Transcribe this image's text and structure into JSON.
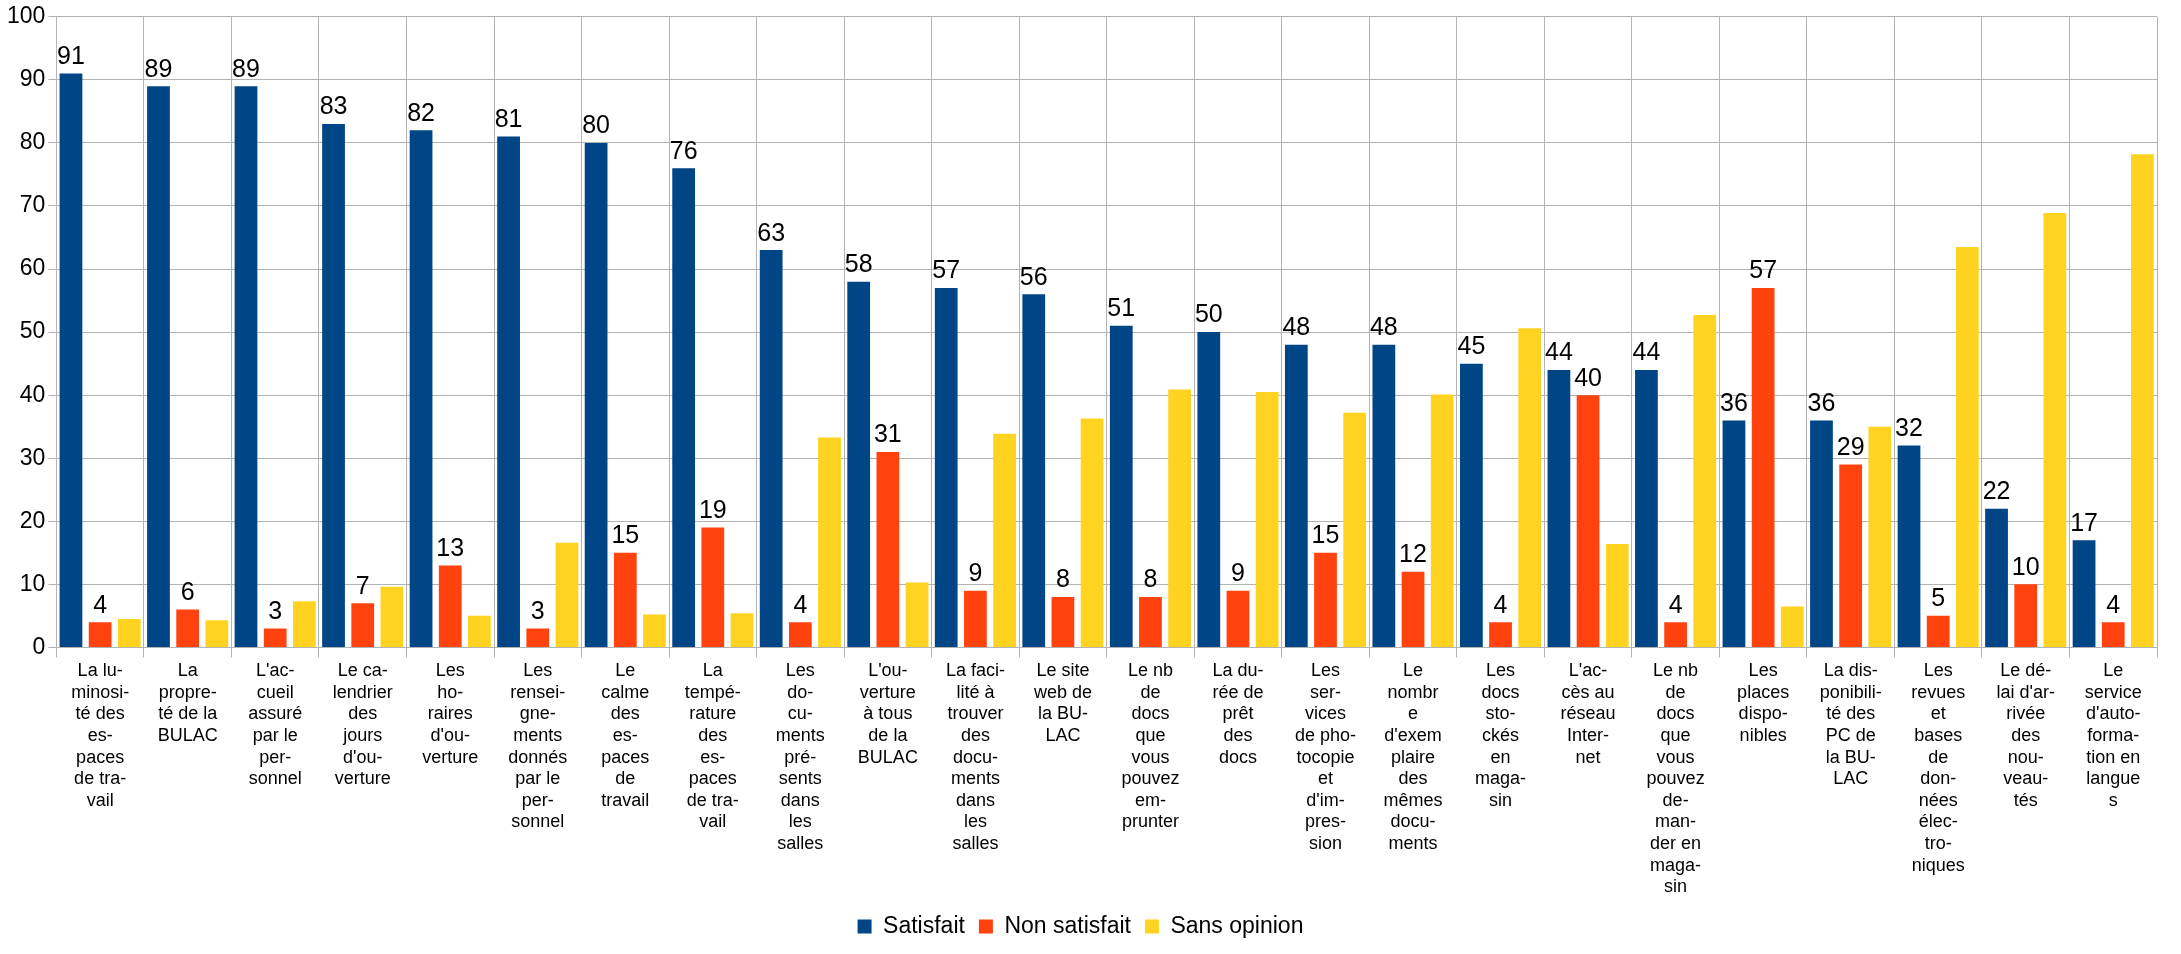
{
  "chart_data": {
    "type": "bar",
    "categories": [
      "La lu-\nminosi-\nté des\nes-\npaces\nde tra-\nvail",
      "La\npropre-\nté de la\nBULAC",
      "L'ac-\ncueil\nassuré\npar le\nper-\nsonnel",
      "Le ca-\nlendrier\ndes\njours\nd'ou-\nverture",
      "Les\nho-\nraires\nd'ou-\nverture",
      "Les\nrensei-\ngne-\nments\ndonnés\npar le\nper-\nsonnel",
      "Le\ncalme\ndes\nes-\npaces\nde\ntravail",
      "La\ntempé-\nrature\ndes\nes-\npaces\nde tra-\nvail",
      "Les\ndo-\ncu-\nments\npré-\nsents\ndans\nles\nsalles",
      "L'ou-\nverture\nà tous\nde la\nBULAC",
      "La faci-\nlité à\ntrouver\ndes\ndocu-\nments\ndans\nles\nsalles",
      "Le site\nweb de\nla BU-\nLAC",
      "Le nb\nde\ndocs\nque\nvous\npouvez\nem-\nprunter",
      "La du-\nrée de\nprêt\ndes\ndocs",
      "Les\nser-\nvices\nde pho-\ntocopie\net\nd'im-\npres-\nsion",
      "Le\nnombr\ne\nd'exem\nplaire\ndes\nmêmes\ndocu-\nments",
      "Les\ndocs\nsto-\nckés\nen\nmaga-\nsin",
      "L'ac-\ncès au\nréseau\nInter-\nnet",
      "Le nb\nde\ndocs\nque\nvous\npouvez\nde-\nman-\nder en\nmaga-\nsin",
      "Les\nplaces\ndispo-\nnibles",
      "La dis-\nponibili-\nté des\nPC de\nla BU-\nLAC",
      "Les\nrevues\net\nbases\nde\ndon-\nnées\nélec-\ntro-\nniques",
      "Le dé-\nlai d'ar-\nrivée\ndes\nnou-\nveau-\ntés",
      "Le\nservice\nd'auto-\nforma-\ntion en\nlangue\ns"
    ],
    "series": [
      {
        "name": "Satisfait",
        "color": "#004586",
        "values": [
          91,
          89,
          89,
          83,
          82,
          81,
          80,
          76,
          63,
          58,
          57,
          56,
          51,
          50,
          48,
          48,
          45,
          44,
          44,
          36,
          36,
          32,
          22,
          17
        ],
        "value_labels": [
          "91",
          "89",
          "89",
          "83",
          "82",
          "81",
          "80",
          "76",
          "63",
          "58",
          "57",
          "56",
          "51",
          "50",
          "48",
          "48",
          "45",
          "44",
          "44",
          "36",
          "36",
          "32",
          "22",
          "17"
        ]
      },
      {
        "name": "Non satisfait",
        "color": "#ff420e",
        "values": [
          4,
          6,
          3,
          7,
          13,
          3,
          15,
          19,
          4,
          31,
          9,
          8,
          8,
          9,
          15,
          12,
          4,
          40,
          4,
          57,
          29,
          5,
          10,
          4
        ],
        "value_labels": [
          "4",
          "6",
          "3",
          "7",
          "13",
          "3",
          "15",
          "19",
          "4",
          "31",
          "9",
          "8",
          "8",
          "9",
          "15",
          "12",
          "4",
          "40",
          "4",
          "57",
          "29",
          "5",
          "10",
          "4"
        ]
      },
      {
        "name": "Sans opinion",
        "color": "#ffd320",
        "values": [
          4.5,
          4.3,
          7.3,
          9.6,
          5.0,
          16.6,
          5.2,
          5.4,
          33.3,
          10.3,
          33.9,
          36.3,
          40.9,
          40.5,
          37.2,
          40.1,
          50.6,
          16.4,
          52.7,
          6.5,
          35.0,
          63.5,
          68.9,
          78.2
        ]
      }
    ],
    "ylim": [
      0,
      100
    ],
    "yticks": [
      0,
      10,
      20,
      30,
      40,
      50,
      60,
      70,
      80,
      90,
      100
    ],
    "grid": true,
    "legend": "bottom"
  }
}
